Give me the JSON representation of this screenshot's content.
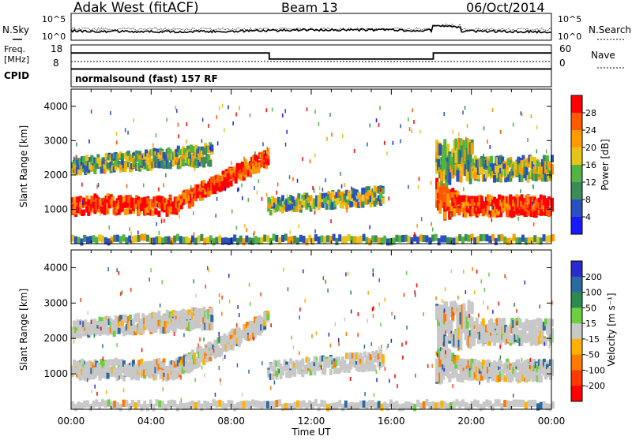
{
  "header": {
    "station": "Adak West (fitACF)",
    "beam": "Beam 13",
    "date": "06/Oct/2014"
  },
  "noise_panel": {
    "left_label": "N.Sky",
    "right_label": "N.Search",
    "left_ticks": [
      "10^5",
      "10^0"
    ],
    "right_ticks": [
      "10^5",
      "10^0"
    ]
  },
  "freq_panel": {
    "left_label_1": "Freq.",
    "left_label_2": "[MHz]",
    "right_label": "Nave",
    "left_ticks": [
      "18",
      "8"
    ],
    "right_ticks": [
      "60",
      "0"
    ],
    "freq_steps": [
      {
        "start_hour": 0,
        "end_hour": 9.9,
        "freq_mhz": 17
      },
      {
        "start_hour": 9.9,
        "end_hour": 18.1,
        "freq_mhz": 13.5
      },
      {
        "start_hour": 18.1,
        "end_hour": 24,
        "freq_mhz": 17
      }
    ]
  },
  "cpid": {
    "label": "CPID",
    "mode": "normalsound (fast) 157 RF"
  },
  "chart_data": [
    {
      "type": "heatmap",
      "name": "power",
      "ylabel": "Slant Range [km]",
      "yticks": [
        1000,
        2000,
        3000,
        4000
      ],
      "ylim": [
        0,
        4500
      ],
      "colorbar_label": "Power [dB]",
      "colorbar_ticks": [
        4,
        8,
        12,
        16,
        20,
        24,
        28
      ],
      "colors": [
        "#1a1aff",
        "#2a50c0",
        "#3c8c5a",
        "#52b442",
        "#e8c41a",
        "#ff9a00",
        "#ff5a00",
        "#ff0000"
      ]
    },
    {
      "type": "heatmap",
      "name": "velocity",
      "ylabel": "Slant Range [km]",
      "yticks": [
        1000,
        2000,
        3000,
        4000
      ],
      "ylim": [
        0,
        4500
      ],
      "colorbar_label": "Velocity [m s⁻¹]",
      "colorbar_ticks": [
        200,
        100,
        50,
        15,
        -15,
        -50,
        -100,
        -200
      ],
      "colors": [
        "#2a2ad0",
        "#2a6aa0",
        "#2a8a50",
        "#6ad040",
        "#c8c8c8",
        "#ffb000",
        "#ff7a00",
        "#ff3a00",
        "#ff0000"
      ]
    }
  ],
  "x_axis": {
    "label": "Time UT",
    "ticks": [
      "00:00",
      "04:00",
      "08:00",
      "12:00",
      "16:00",
      "20:00",
      "00:00"
    ]
  }
}
